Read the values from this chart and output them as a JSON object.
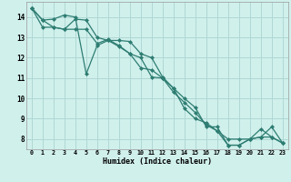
{
  "title": "",
  "xlabel": "Humidex (Indice chaleur)",
  "bg_color": "#d0f0ec",
  "grid_color": "#b0d8d4",
  "line_color": "#2e7d72",
  "xlim": [
    -0.5,
    23.5
  ],
  "ylim": [
    7.5,
    14.75
  ],
  "yticks": [
    8,
    9,
    10,
    11,
    12,
    13,
    14
  ],
  "xticks": [
    0,
    1,
    2,
    3,
    4,
    5,
    6,
    7,
    8,
    9,
    10,
    11,
    12,
    13,
    14,
    15,
    16,
    17,
    18,
    19,
    20,
    21,
    22,
    23
  ],
  "series": [
    [
      14.45,
      13.85,
      13.9,
      14.1,
      14.0,
      11.2,
      12.6,
      12.85,
      12.85,
      12.8,
      12.2,
      12.0,
      11.05,
      10.5,
      10.0,
      9.55,
      8.6,
      8.6,
      7.7,
      7.7,
      8.0,
      8.1,
      8.1,
      7.8
    ],
    [
      14.45,
      13.85,
      13.5,
      13.4,
      13.9,
      13.85,
      13.0,
      12.85,
      12.55,
      12.2,
      12.0,
      11.05,
      11.0,
      10.5,
      9.5,
      9.0,
      8.8,
      8.4,
      8.0,
      8.0,
      8.0,
      8.5,
      8.1,
      7.8
    ],
    [
      14.45,
      13.5,
      13.5,
      13.4,
      13.4,
      13.4,
      12.7,
      12.9,
      12.6,
      12.2,
      11.5,
      11.4,
      11.0,
      10.3,
      9.8,
      9.3,
      8.7,
      8.4,
      7.7,
      7.7,
      8.0,
      8.1,
      8.6,
      7.8
    ]
  ]
}
